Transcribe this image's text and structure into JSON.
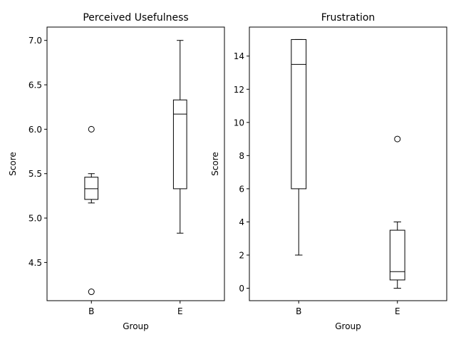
{
  "chart_data": [
    {
      "type": "box",
      "title": "Perceived Usefulness",
      "xlabel": "Group",
      "ylabel": "Score",
      "categories": [
        "B",
        "E"
      ],
      "ylim": [
        4.07,
        7.15
      ],
      "yticks": [
        4.5,
        5.0,
        5.5,
        6.0,
        6.5,
        7.0
      ],
      "ytick_labels": [
        "4.5",
        "5.0",
        "5.5",
        "6.0",
        "6.5",
        "7.0"
      ],
      "boxes": [
        {
          "category": "B",
          "whislo": 5.17,
          "q1": 5.21,
          "med": 5.33,
          "q3": 5.46,
          "whishi": 5.5,
          "fliers": [
            6.0,
            4.17
          ]
        },
        {
          "category": "E",
          "whislo": 4.83,
          "q1": 5.33,
          "med": 6.17,
          "q3": 6.33,
          "whishi": 7.0,
          "fliers": []
        }
      ]
    },
    {
      "type": "box",
      "title": "Frustration",
      "xlabel": "Group",
      "ylabel": "Score",
      "categories": [
        "B",
        "E"
      ],
      "ylim": [
        -0.75,
        15.75
      ],
      "yticks": [
        0,
        2,
        4,
        6,
        8,
        10,
        12,
        14
      ],
      "ytick_labels": [
        "0",
        "2",
        "4",
        "6",
        "8",
        "10",
        "12",
        "14"
      ],
      "boxes": [
        {
          "category": "B",
          "whislo": 2,
          "q1": 6,
          "med": 13.5,
          "q3": 15,
          "whishi": 15,
          "fliers": []
        },
        {
          "category": "E",
          "whislo": 0,
          "q1": 0.5,
          "med": 1,
          "q3": 3.5,
          "whishi": 4,
          "fliers": [
            9
          ]
        }
      ]
    }
  ]
}
